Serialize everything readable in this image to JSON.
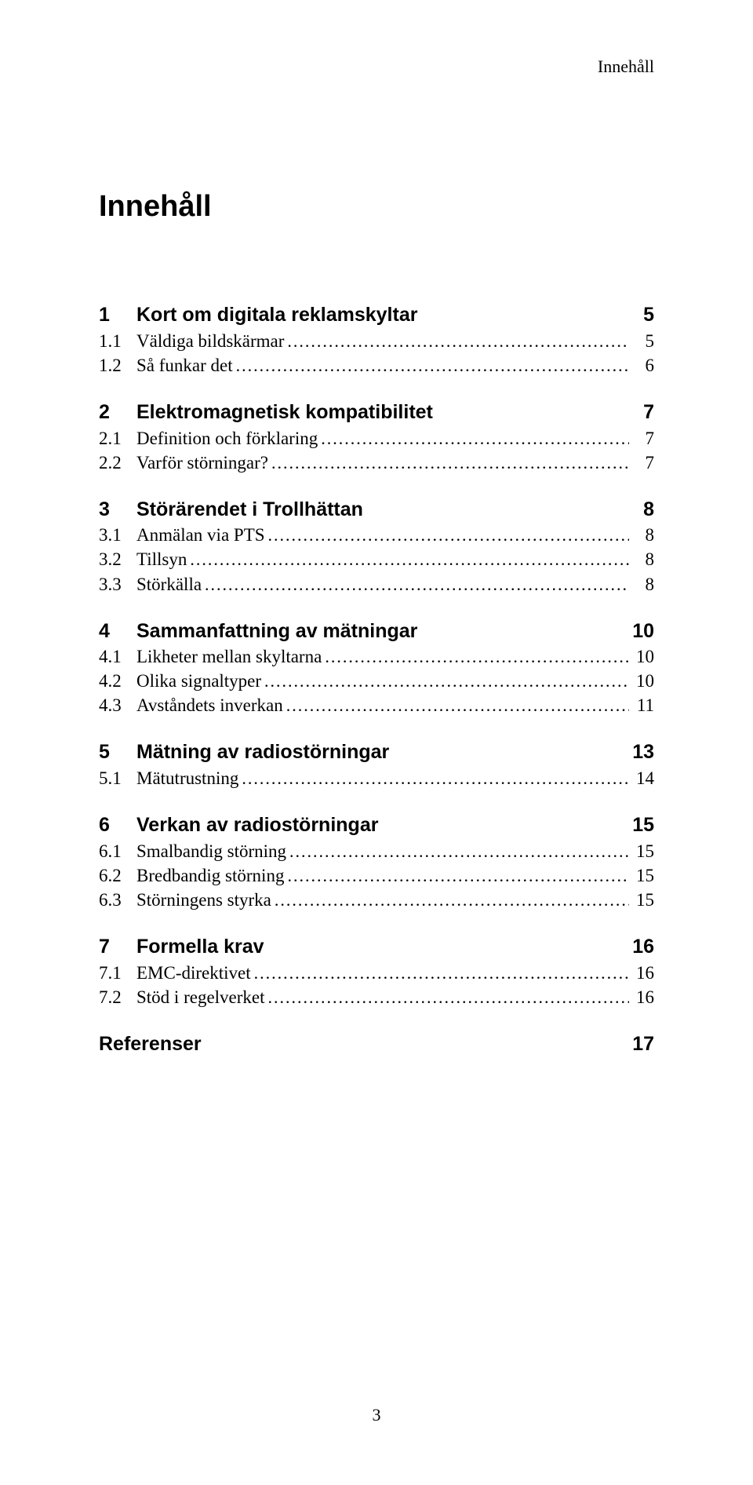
{
  "running_head": "Innehåll",
  "title": "Innehåll",
  "page_number": "3",
  "dots": "......................................................................................................................................................................................",
  "sections": [
    {
      "num": "1",
      "title": "Kort om digitala reklamskyltar",
      "page": "5",
      "items": [
        {
          "num": "1.1",
          "title": "Väldiga bildskärmar",
          "page": "5"
        },
        {
          "num": "1.2",
          "title": "Så funkar det",
          "page": "6"
        }
      ]
    },
    {
      "num": "2",
      "title": "Elektromagnetisk kompatibilitet",
      "page": "7",
      "items": [
        {
          "num": "2.1",
          "title": "Definition och förklaring",
          "page": "7"
        },
        {
          "num": "2.2",
          "title": "Varför störningar?",
          "page": "7"
        }
      ]
    },
    {
      "num": "3",
      "title": "Störärendet i Trollhättan",
      "page": "8",
      "items": [
        {
          "num": "3.1",
          "title": "Anmälan via PTS",
          "page": "8"
        },
        {
          "num": "3.2",
          "title": "Tillsyn",
          "page": "8"
        },
        {
          "num": "3.3",
          "title": "Störkälla",
          "page": "8"
        }
      ]
    },
    {
      "num": "4",
      "title": "Sammanfattning av mätningar",
      "page": "10",
      "items": [
        {
          "num": "4.1",
          "title": "Likheter mellan skyltarna",
          "page": "10"
        },
        {
          "num": "4.2",
          "title": "Olika signaltyper",
          "page": "10"
        },
        {
          "num": "4.3",
          "title": "Avståndets inverkan",
          "page": "11"
        }
      ]
    },
    {
      "num": "5",
      "title": "Mätning av radiostörningar",
      "page": "13",
      "items": [
        {
          "num": "5.1",
          "title": "Mätutrustning",
          "page": "14"
        }
      ]
    },
    {
      "num": "6",
      "title": "Verkan av radiostörningar",
      "page": "15",
      "items": [
        {
          "num": "6.1",
          "title": "Smalbandig störning",
          "page": "15"
        },
        {
          "num": "6.2",
          "title": "Bredbandig störning",
          "page": "15"
        },
        {
          "num": "6.3",
          "title": "Störningens styrka",
          "page": "15"
        }
      ]
    },
    {
      "num": "7",
      "title": "Formella krav",
      "page": "16",
      "items": [
        {
          "num": "7.1",
          "title": "EMC-direktivet",
          "page": "16"
        },
        {
          "num": "7.2",
          "title": "Stöd i regelverket",
          "page": "16"
        }
      ]
    }
  ],
  "references": {
    "title": "Referenser",
    "page": "17"
  }
}
